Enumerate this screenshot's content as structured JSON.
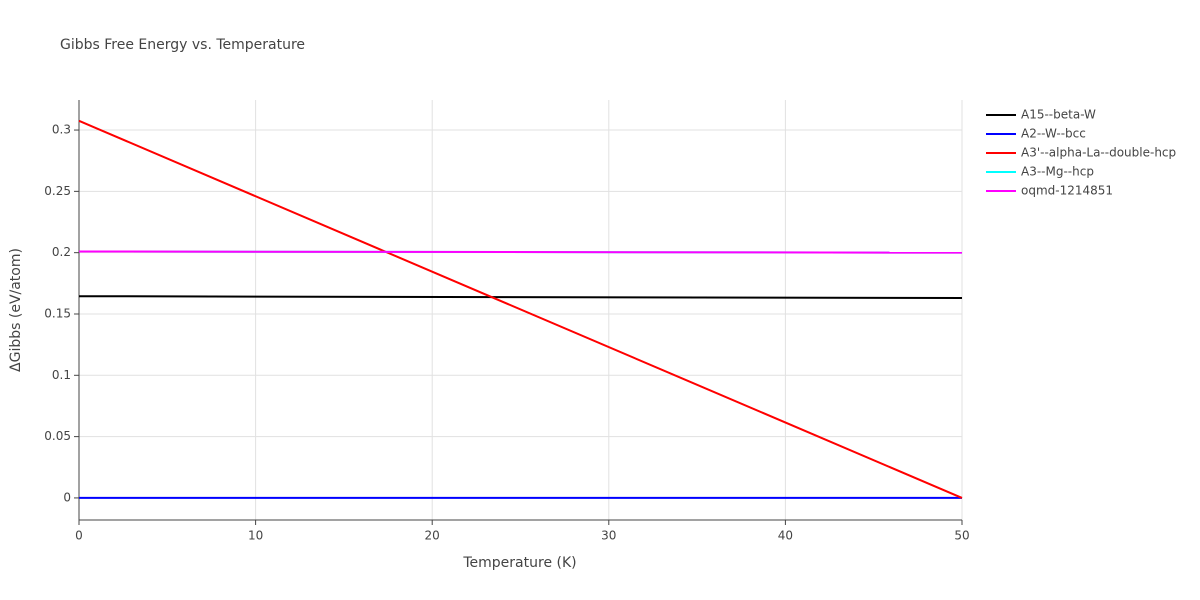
{
  "chart_data": {
    "type": "line",
    "title": "Gibbs Free Energy vs. Temperature",
    "x_label": "Temperature (K)",
    "y_label": "ΔGibbs (eV/atom)",
    "x": [
      0,
      50
    ],
    "series": [
      {
        "name": "A15--beta-W",
        "color": "#000000",
        "values": [
          0.1645,
          0.163
        ]
      },
      {
        "name": "A2--W--bcc",
        "color": "#0000ff",
        "values": [
          0,
          0
        ]
      },
      {
        "name": "A3'--alpha-La--double-hcp",
        "color": "#ff0000",
        "values": [
          0.3075,
          0
        ]
      },
      {
        "name": "A3--Mg--hcp",
        "color": "#00ffff",
        "values": [
          0.201,
          0.2
        ]
      },
      {
        "name": "oqmd-1214851",
        "color": "#ff00ff",
        "values": [
          0.201,
          0.2
        ]
      }
    ],
    "xlim": [
      0,
      50
    ],
    "xticks": [
      0,
      10,
      20,
      30,
      40,
      50
    ],
    "ylim": [
      -0.018,
      0.3245
    ],
    "yticks": [
      0,
      0.05,
      0.1,
      0.15,
      0.2,
      0.25,
      0.3
    ],
    "grid": true
  }
}
